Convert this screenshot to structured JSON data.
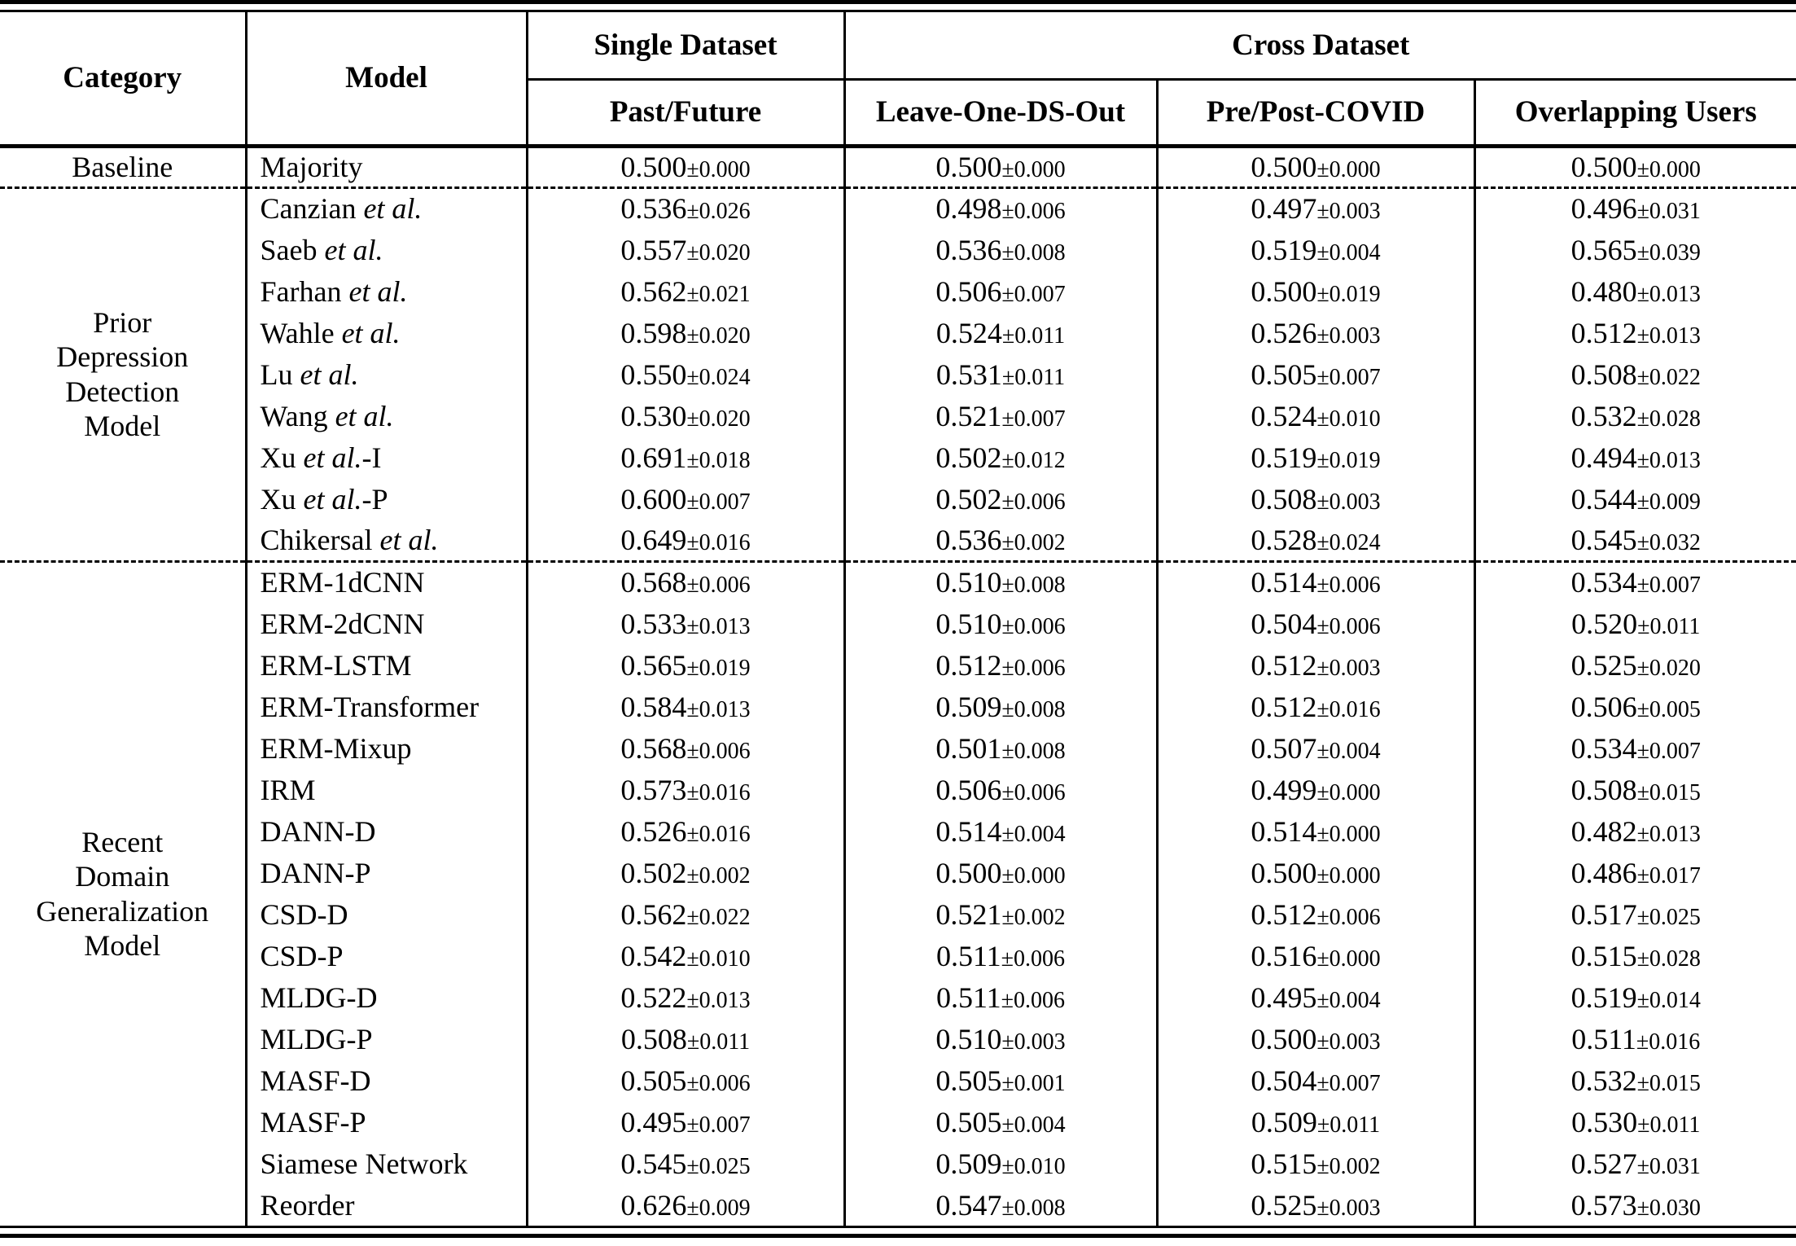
{
  "table": {
    "header": {
      "category": "Category",
      "model": "Model",
      "single_dataset": "Single Dataset",
      "cross_dataset": "Cross Dataset",
      "subcolumns": [
        "Past/Future",
        "Leave-One-DS-Out",
        "Pre/Post-COVID",
        "Overlapping Users"
      ]
    },
    "sections": [
      {
        "id": "baseline",
        "category": "Baseline",
        "category_lines": [
          "Baseline"
        ],
        "rows": [
          {
            "model": "Majority",
            "values": [
              "0.500±0.000",
              "0.500±0.000",
              "0.500±0.000",
              "0.500±0.000"
            ]
          }
        ]
      },
      {
        "id": "prior-depression-detection-model",
        "category": "Prior Depression Detection Model",
        "category_lines": [
          "Prior",
          "Depression",
          "Detection",
          "Model"
        ],
        "rows": [
          {
            "model": "Canzian et al.",
            "values": [
              "0.536±0.026",
              "0.498±0.006",
              "0.497±0.003",
              "0.496±0.031"
            ]
          },
          {
            "model": "Saeb et al.",
            "values": [
              "0.557±0.020",
              "0.536±0.008",
              "0.519±0.004",
              "0.565±0.039"
            ]
          },
          {
            "model": "Farhan et al.",
            "values": [
              "0.562±0.021",
              "0.506±0.007",
              "0.500±0.019",
              "0.480±0.013"
            ]
          },
          {
            "model": "Wahle et al.",
            "values": [
              "0.598±0.020",
              "0.524±0.011",
              "0.526±0.003",
              "0.512±0.013"
            ]
          },
          {
            "model": "Lu et al.",
            "values": [
              "0.550±0.024",
              "0.531±0.011",
              "0.505±0.007",
              "0.508±0.022"
            ]
          },
          {
            "model": "Wang et al.",
            "values": [
              "0.530±0.020",
              "0.521±0.007",
              "0.524±0.010",
              "0.532±0.028"
            ]
          },
          {
            "model": "Xu et al.-I",
            "values": [
              "0.691±0.018",
              "0.502±0.012",
              "0.519±0.019",
              "0.494±0.013"
            ]
          },
          {
            "model": "Xu et al.-P",
            "values": [
              "0.600±0.007",
              "0.502±0.006",
              "0.508±0.003",
              "0.544±0.009"
            ]
          },
          {
            "model": "Chikersal et al.",
            "values": [
              "0.649±0.016",
              "0.536±0.002",
              "0.528±0.024",
              "0.545±0.032"
            ]
          }
        ]
      },
      {
        "id": "recent-domain-generalization-model",
        "category": "Recent Domain Generalization Model",
        "category_lines": [
          "Recent",
          "Domain",
          "Generalization",
          "Model"
        ],
        "rows": [
          {
            "model": "ERM-1dCNN",
            "values": [
              "0.568±0.006",
              "0.510±0.008",
              "0.514±0.006",
              "0.534±0.007"
            ]
          },
          {
            "model": "ERM-2dCNN",
            "values": [
              "0.533±0.013",
              "0.510±0.006",
              "0.504±0.006",
              "0.520±0.011"
            ]
          },
          {
            "model": "ERM-LSTM",
            "values": [
              "0.565±0.019",
              "0.512±0.006",
              "0.512±0.003",
              "0.525±0.020"
            ]
          },
          {
            "model": "ERM-Transformer",
            "values": [
              "0.584±0.013",
              "0.509±0.008",
              "0.512±0.016",
              "0.506±0.005"
            ]
          },
          {
            "model": "ERM-Mixup",
            "values": [
              "0.568±0.006",
              "0.501±0.008",
              "0.507±0.004",
              "0.534±0.007"
            ]
          },
          {
            "model": "IRM",
            "values": [
              "0.573±0.016",
              "0.506±0.006",
              "0.499±0.000",
              "0.508±0.015"
            ]
          },
          {
            "model": "DANN-D",
            "values": [
              "0.526±0.016",
              "0.514±0.004",
              "0.514±0.000",
              "0.482±0.013"
            ]
          },
          {
            "model": "DANN-P",
            "values": [
              "0.502±0.002",
              "0.500±0.000",
              "0.500±0.000",
              "0.486±0.017"
            ]
          },
          {
            "model": "CSD-D",
            "values": [
              "0.562±0.022",
              "0.521±0.002",
              "0.512±0.006",
              "0.517±0.025"
            ]
          },
          {
            "model": "CSD-P",
            "values": [
              "0.542±0.010",
              "0.511±0.006",
              "0.516±0.000",
              "0.515±0.028"
            ]
          },
          {
            "model": "MLDG-D",
            "values": [
              "0.522±0.013",
              "0.511±0.006",
              "0.495±0.004",
              "0.519±0.014"
            ]
          },
          {
            "model": "MLDG-P",
            "values": [
              "0.508±0.011",
              "0.510±0.003",
              "0.500±0.003",
              "0.511±0.016"
            ]
          },
          {
            "model": "MASF-D",
            "values": [
              "0.505±0.006",
              "0.505±0.001",
              "0.504±0.007",
              "0.532±0.015"
            ]
          },
          {
            "model": "MASF-P",
            "values": [
              "0.495±0.007",
              "0.505±0.004",
              "0.509±0.011",
              "0.530±0.011"
            ]
          },
          {
            "model": "Siamese Network",
            "values": [
              "0.545±0.025",
              "0.509±0.010",
              "0.515±0.002",
              "0.527±0.031"
            ]
          },
          {
            "model": "Reorder",
            "values": [
              "0.626±0.009",
              "0.547±0.008",
              "0.525±0.003",
              "0.573±0.030"
            ]
          }
        ]
      }
    ]
  }
}
